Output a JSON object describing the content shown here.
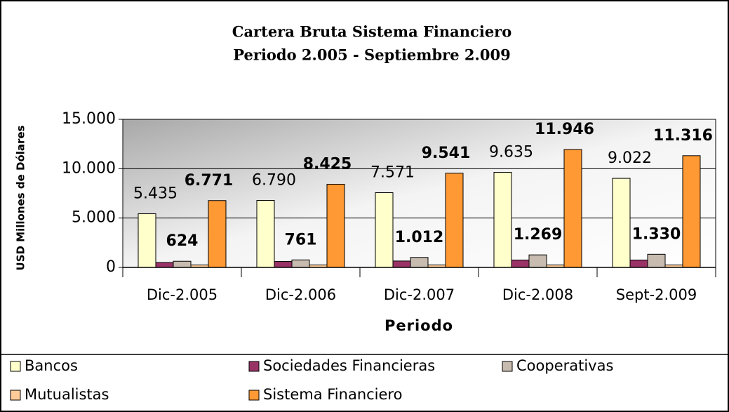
{
  "chart_data": {
    "type": "bar",
    "title": "Cartera Bruta Sistema Financiero",
    "subtitle": "Periodo 2.005 - Septiembre 2.009",
    "x_label": "Periodo",
    "y_label": "USD Millones de Dólares",
    "categories": [
      "Dic-2.005",
      "Dic-2.006",
      "Dic-2.007",
      "Dic-2.008",
      "Sept-2.009"
    ],
    "series": [
      {
        "name": "Bancos",
        "color": "#ffffcc",
        "values": [
          5435,
          6790,
          7571,
          9635,
          9022
        ],
        "value_labels": [
          "5.435",
          "6.790",
          "7.571",
          "9.635",
          "9.022"
        ]
      },
      {
        "name": "Sociedades Financieras",
        "color": "#993366",
        "values": [
          500,
          600,
          650,
          750,
          750
        ]
      },
      {
        "name": "Cooperativas",
        "color": "#c8bcb0",
        "values": [
          624,
          761,
          1012,
          1269,
          1330
        ],
        "value_labels": [
          "624",
          "761",
          "1.012",
          "1.269",
          "1.330"
        ]
      },
      {
        "name": "Mutualistas",
        "color": "#ffcc99",
        "values": [
          250,
          250,
          250,
          250,
          250
        ]
      },
      {
        "name": "Sistema Financiero",
        "color": "#ff9933",
        "values": [
          6771,
          8425,
          9541,
          11946,
          11316
        ],
        "value_labels": [
          "6.771",
          "8.425",
          "9.541",
          "11.946",
          "11.316"
        ]
      }
    ],
    "ylim": [
      0,
      15000
    ],
    "yticks": [
      0,
      {
        "value": 5000,
        "label": "5.000"
      },
      {
        "value": 10000,
        "label": "10.000"
      },
      {
        "value": 15000,
        "label": "15.000"
      }
    ],
    "grid": true,
    "legend": "bottom"
  }
}
